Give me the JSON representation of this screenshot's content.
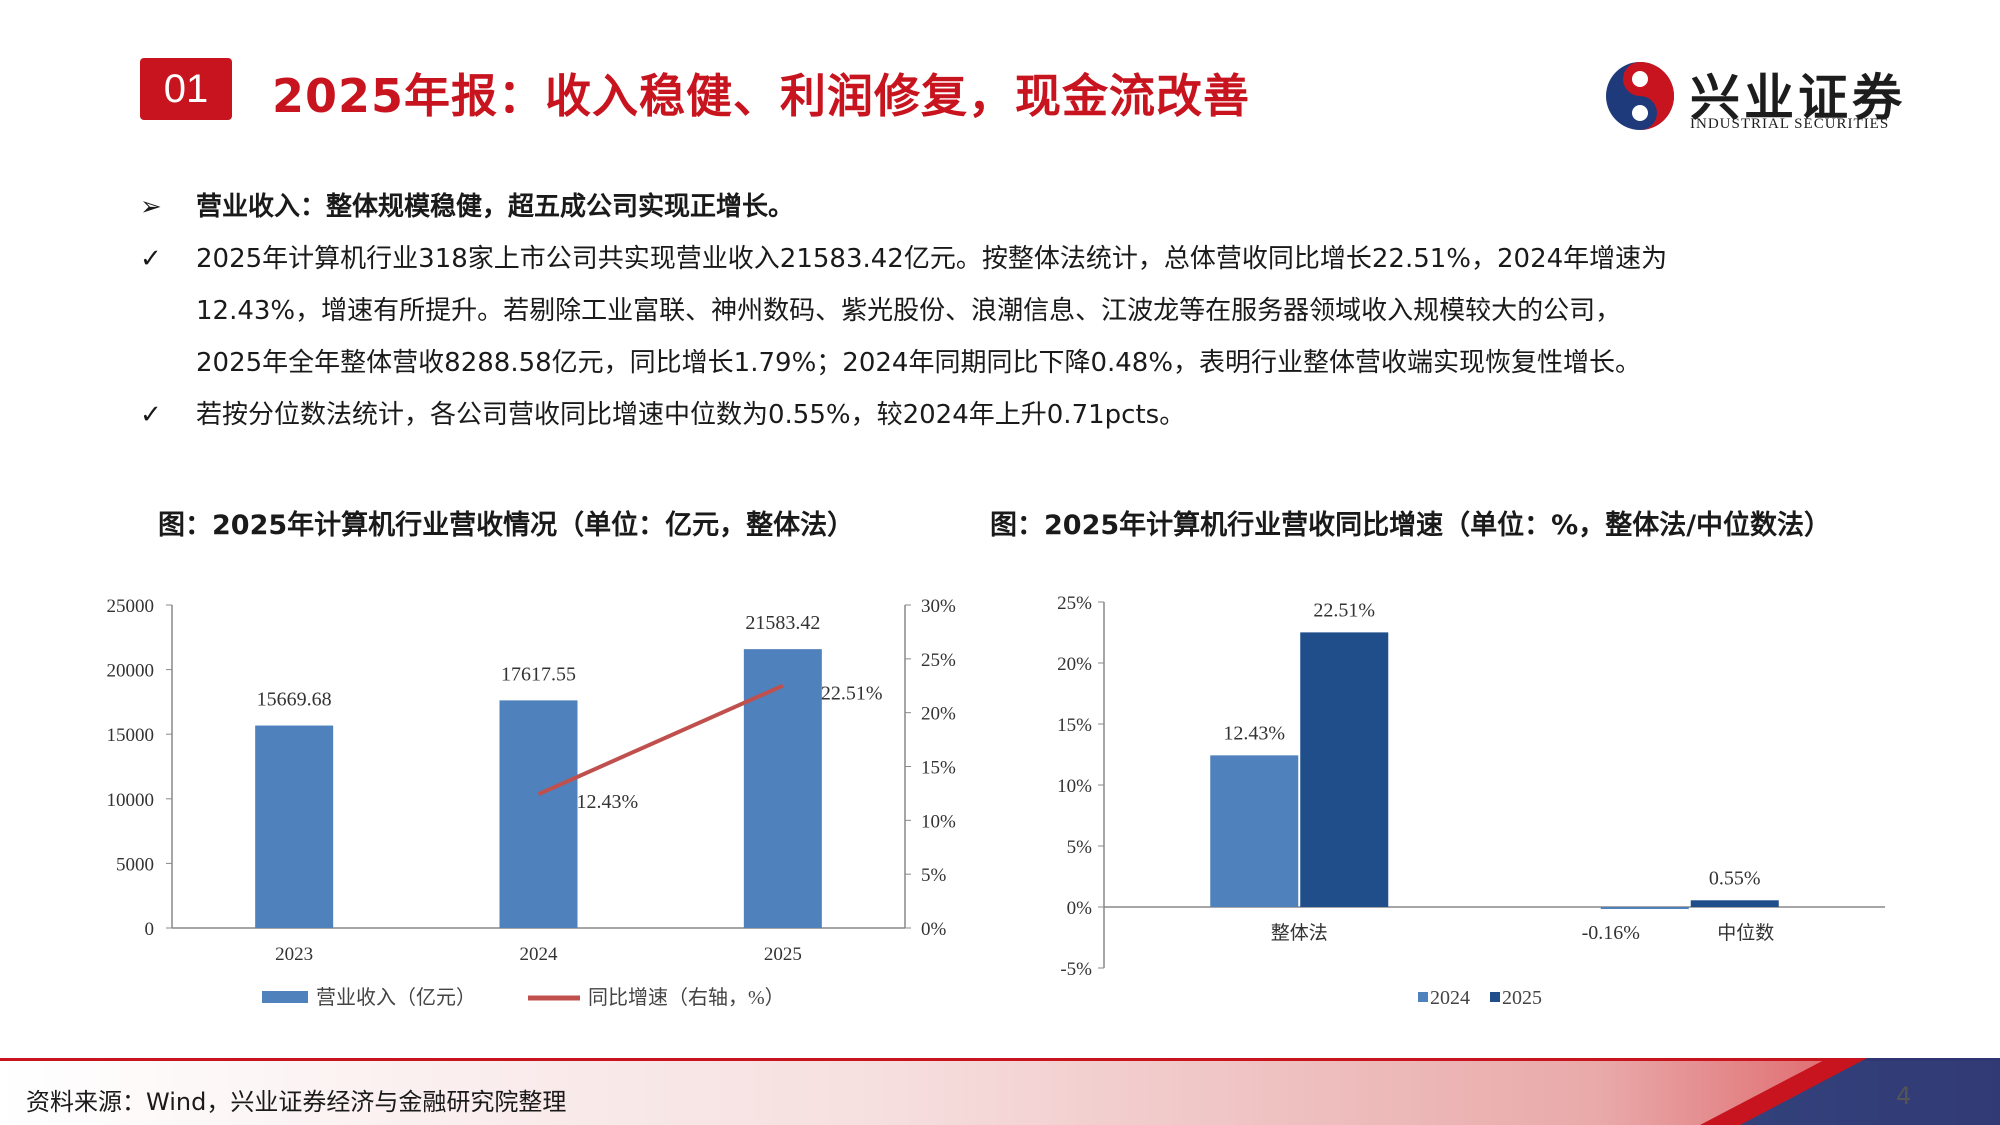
{
  "header": {
    "section_number": "01",
    "title": "2025年报：收入稳健、利润修复，现金流改善",
    "logo_cn": "兴业证券",
    "logo_en": "INDUSTRIAL SECURITIES"
  },
  "bullets": {
    "heading_marker": "➢",
    "heading": "营业收入：整体规模稳健，超五成公司实现正增长。",
    "check_marker": "✓",
    "p1_lines": [
      "2025年计算机行业318家上市公司共实现营业收入21583.42亿元。按整体法统计，总体营收同比增长22.51%，2024年增速为",
      "12.43%，增速有所提升。若剔除工业富联、神州数码、紫光股份、浪潮信息、江波龙等在服务器领域收入规模较大的公司，",
      "2025年全年整体营收8288.58亿元，同比增长1.79%；2024年同期同比下降0.48%，表明行业整体营收端实现恢复性增长。"
    ],
    "p2": "若按分位数法统计，各公司营收同比增速中位数为0.55%，较2024年上升0.71pcts。"
  },
  "chart_data": [
    {
      "type": "bar",
      "title": "图：2025年计算机行业营收情况（单位：亿元，整体法）",
      "categories": [
        "2023",
        "2024",
        "2025"
      ],
      "series": [
        {
          "name": "营业收入（亿元）",
          "type": "bar",
          "axis": "left",
          "values": [
            15669.68,
            17617.55,
            21583.42
          ],
          "labels": [
            "15669.68",
            "17617.55",
            "21583.42"
          ],
          "color": "#4f81bd"
        },
        {
          "name": "同比增速（右轴，%）",
          "type": "line",
          "axis": "right",
          "values": [
            null,
            12.43,
            22.51
          ],
          "labels": [
            "",
            "12.43%",
            "22.51%"
          ],
          "color": "#c0504d"
        }
      ],
      "y_left": {
        "min": 0,
        "max": 25000,
        "step": 5000,
        "ticks": [
          "0",
          "5000",
          "10000",
          "15000",
          "20000",
          "25000"
        ]
      },
      "y_right": {
        "min": 0,
        "max": 30,
        "step": 5,
        "ticks": [
          "0%",
          "5%",
          "10%",
          "15%",
          "20%",
          "25%",
          "30%"
        ]
      },
      "legend_position": "bottom",
      "grid": false
    },
    {
      "type": "bar",
      "title": "图：2025年计算机行业营收同比增速（单位：%，整体法/中位数法）",
      "categories": [
        "整体法",
        "中位数"
      ],
      "series": [
        {
          "name": "2024",
          "values": [
            12.43,
            -0.16
          ],
          "labels": [
            "12.43%",
            "-0.16%"
          ],
          "color": "#4f81bd"
        },
        {
          "name": "2025",
          "values": [
            22.51,
            0.55
          ],
          "labels": [
            "22.51%",
            "0.55%"
          ],
          "color": "#1f4e8a"
        }
      ],
      "ylim": [
        -5,
        25
      ],
      "y_ticks": [
        "-5%",
        "0%",
        "5%",
        "10%",
        "15%",
        "20%",
        "25%"
      ],
      "legend_position": "bottom",
      "grid": false
    }
  ],
  "footer": {
    "source": "资料来源：Wind，兴业证券经济与金融研究院整理",
    "page_number": "4"
  },
  "colors": {
    "brand_red": "#c8141e",
    "bar_blue": "#4f81bd",
    "bar_dark_blue": "#1f4e8a",
    "line_red": "#c0504d"
  }
}
